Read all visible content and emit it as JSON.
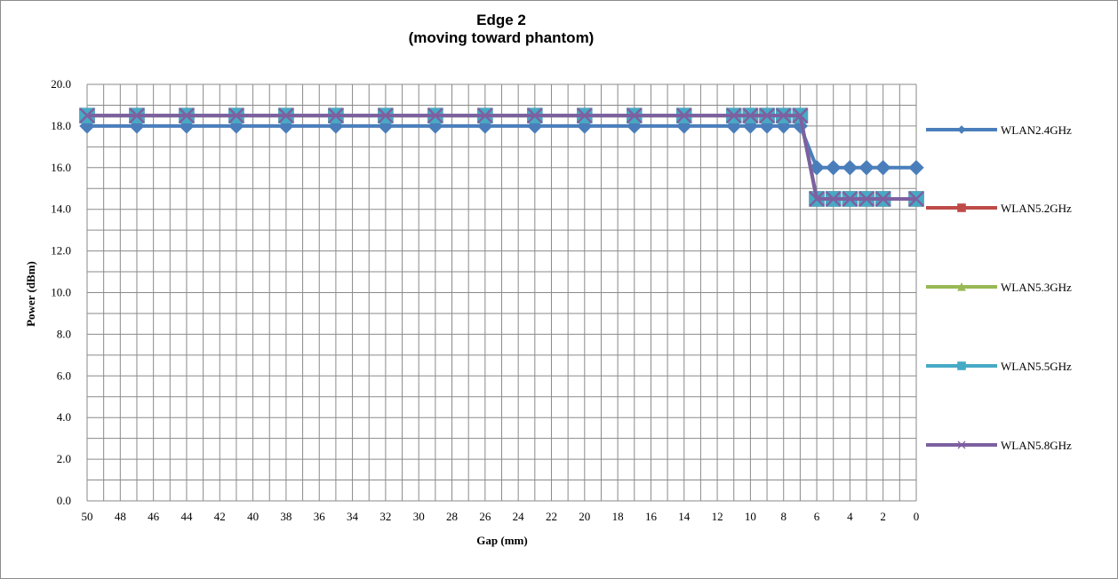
{
  "chart_data": {
    "type": "line",
    "title_line1": "Edge 2",
    "title_line2": "(moving toward phantom)",
    "xlabel": "Gap (mm)",
    "ylabel": "Power (dBm)",
    "xlim": [
      50,
      0
    ],
    "ylim": [
      0,
      20
    ],
    "x_ticks": [
      "50",
      "48",
      "46",
      "44",
      "42",
      "40",
      "38",
      "36",
      "34",
      "32",
      "30",
      "28",
      "26",
      "24",
      "22",
      "20",
      "18",
      "16",
      "14",
      "12",
      "10",
      "8",
      "6",
      "4",
      "2",
      "0"
    ],
    "y_ticks": [
      "0.0",
      "2.0",
      "4.0",
      "6.0",
      "8.0",
      "10.0",
      "12.0",
      "14.0",
      "16.0",
      "18.0",
      "20.0"
    ],
    "grid": true,
    "legend_position": "right",
    "x": [
      50,
      47,
      44,
      41,
      38,
      35,
      32,
      29,
      26,
      23,
      20,
      17,
      14,
      11,
      10,
      9,
      8,
      7,
      6,
      5,
      4,
      3,
      2,
      0
    ],
    "series": [
      {
        "name": "WLAN2.4GHz",
        "color": "#4a7ebb",
        "marker": "diamond",
        "values": [
          18,
          18,
          18,
          18,
          18,
          18,
          18,
          18,
          18,
          18,
          18,
          18,
          18,
          18,
          18,
          18,
          18,
          18,
          16,
          16,
          16,
          16,
          16,
          16
        ]
      },
      {
        "name": "WLAN5.2GHz",
        "color": "#be4b48",
        "marker": "square",
        "values": [
          18.5,
          18.5,
          18.5,
          18.5,
          18.5,
          18.5,
          18.5,
          18.5,
          18.5,
          18.5,
          18.5,
          18.5,
          18.5,
          18.5,
          18.5,
          18.5,
          18.5,
          18.5,
          14.5,
          14.5,
          14.5,
          14.5,
          14.5,
          14.5
        ]
      },
      {
        "name": "WLAN5.3GHz",
        "color": "#98b954",
        "marker": "triangle",
        "values": [
          18.5,
          18.5,
          18.5,
          18.5,
          18.5,
          18.5,
          18.5,
          18.5,
          18.5,
          18.5,
          18.5,
          18.5,
          18.5,
          18.5,
          18.5,
          18.5,
          18.5,
          18.5,
          14.5,
          14.5,
          14.5,
          14.5,
          14.5,
          14.5
        ]
      },
      {
        "name": "WLAN5.5GHz",
        "color": "#46aac5",
        "marker": "square",
        "values": [
          18.5,
          18.5,
          18.5,
          18.5,
          18.5,
          18.5,
          18.5,
          18.5,
          18.5,
          18.5,
          18.5,
          18.5,
          18.5,
          18.5,
          18.5,
          18.5,
          18.5,
          18.5,
          14.5,
          14.5,
          14.5,
          14.5,
          14.5,
          14.5
        ]
      },
      {
        "name": "WLAN5.8GHz",
        "color": "#7d60a0",
        "marker": "x",
        "values": [
          18.5,
          18.5,
          18.5,
          18.5,
          18.5,
          18.5,
          18.5,
          18.5,
          18.5,
          18.5,
          18.5,
          18.5,
          18.5,
          18.5,
          18.5,
          18.5,
          18.5,
          18.5,
          14.5,
          14.5,
          14.5,
          14.5,
          14.5,
          14.5
        ]
      }
    ]
  }
}
